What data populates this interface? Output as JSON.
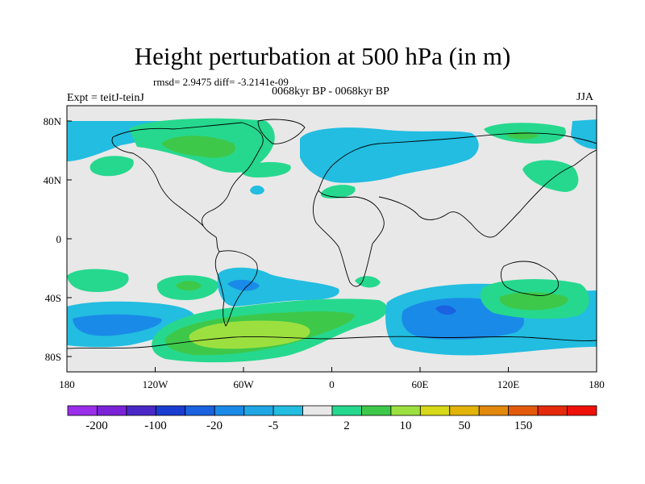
{
  "title": "Height perturbation at 500 hPa (in m)",
  "stats": "rmsd= 2.9475 diff= -3.2141e-09",
  "subtitle": "0068kyr BP - 0068kyr BP",
  "expt": "Expt = teitJ-teinJ",
  "season": "JJA",
  "lat_ticks": [
    "80N",
    "40N",
    "0",
    "40S",
    "80S"
  ],
  "lon_ticks": [
    "180",
    "120W",
    "60W",
    "0",
    "60E",
    "120E",
    "180"
  ],
  "colorbar": {
    "colors": [
      "#9a2eea",
      "#7a22d8",
      "#4a28c8",
      "#1a3cd0",
      "#1a62e0",
      "#1a8ae8",
      "#20a6e4",
      "#22bde0",
      "#e8e8e8",
      "#26d88e",
      "#3ec84a",
      "#9ce040",
      "#d6d818",
      "#e2b408",
      "#e2880a",
      "#e25a0a",
      "#e42a0a",
      "#f0100a"
    ],
    "labels": [
      "-200",
      "-100",
      "-20",
      "-5",
      "2",
      "10",
      "50",
      "150"
    ]
  },
  "colors": {
    "background": "#e8e8e8",
    "neg_light": "#22bde0",
    "neg_mid": "#1a8ae8",
    "neg_deep": "#1a62e0",
    "pos_light": "#26d88e",
    "pos_mid": "#3ec84a",
    "pos_strong": "#9ce040",
    "coast": "#000000"
  }
}
